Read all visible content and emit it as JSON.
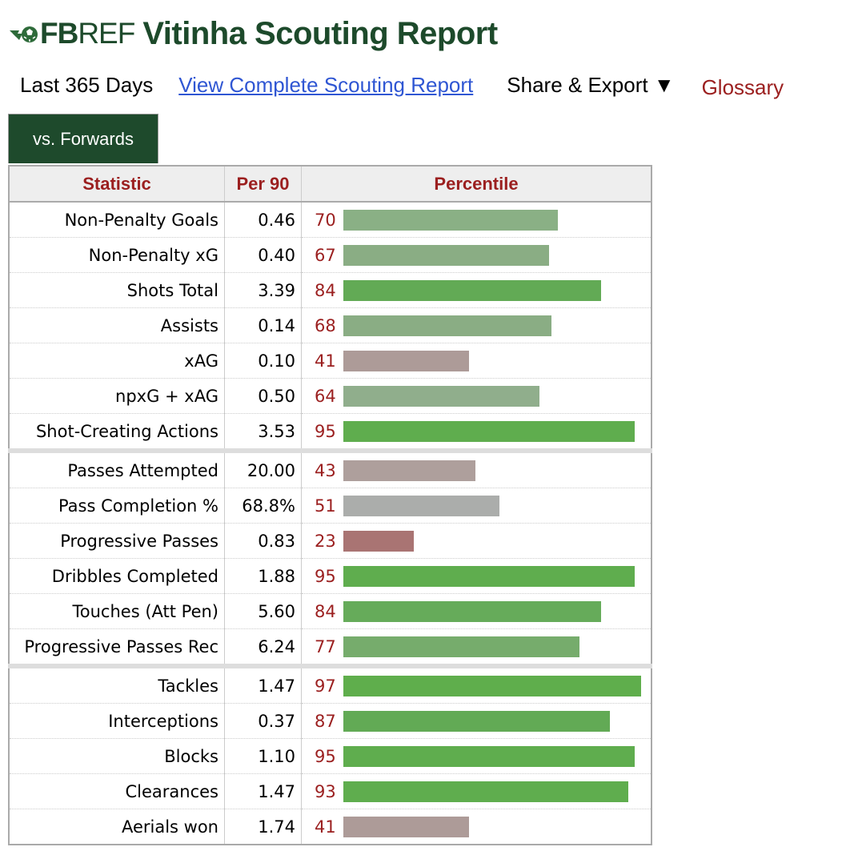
{
  "brand": {
    "logo_text_bold": "FB",
    "logo_text_thin": "REF"
  },
  "title": "Vitinha Scouting Report",
  "nav": {
    "period": "Last 365 Days",
    "full_report": "View Complete Scouting Report",
    "share": "Share & Export ▼",
    "glossary": "Glossary"
  },
  "tab": {
    "label": "vs. Forwards"
  },
  "table": {
    "headers": {
      "statistic": "Statistic",
      "per90": "Per 90",
      "percentile": "Percentile"
    },
    "groups": [
      [
        {
          "stat": "Non-Penalty Goals",
          "per90": "0.46",
          "pct": 70,
          "color": "#8ab085"
        },
        {
          "stat": "Non-Penalty xG",
          "per90": "0.40",
          "pct": 67,
          "color": "#8aad84"
        },
        {
          "stat": "Shots Total",
          "per90": "3.39",
          "pct": 84,
          "color": "#62aa55"
        },
        {
          "stat": "Assists",
          "per90": "0.14",
          "pct": 68,
          "color": "#8aad84"
        },
        {
          "stat": "xAG",
          "per90": "0.10",
          "pct": 41,
          "color": "#ad9b98"
        },
        {
          "stat": "npxG + xAG",
          "per90": "0.50",
          "pct": 64,
          "color": "#90ae8c"
        },
        {
          "stat": "Shot-Creating Actions",
          "per90": "3.53",
          "pct": 95,
          "color": "#5fad4e"
        }
      ],
      [
        {
          "stat": "Passes Attempted",
          "per90": "20.00",
          "pct": 43,
          "color": "#ae9f9c"
        },
        {
          "stat": "Pass Completion %",
          "per90": "68.8%",
          "pct": 51,
          "color": "#abadab"
        },
        {
          "stat": "Progressive Passes",
          "per90": "0.83",
          "pct": 23,
          "color": "#a97473"
        },
        {
          "stat": "Dribbles Completed",
          "per90": "1.88",
          "pct": 95,
          "color": "#5fad4e"
        },
        {
          "stat": "Touches (Att Pen)",
          "per90": "5.60",
          "pct": 84,
          "color": "#66ab5a"
        },
        {
          "stat": "Progressive Passes Rec",
          "per90": "6.24",
          "pct": 77,
          "color": "#76ac6c"
        }
      ],
      [
        {
          "stat": "Tackles",
          "per90": "1.47",
          "pct": 97,
          "color": "#5fae4c"
        },
        {
          "stat": "Interceptions",
          "per90": "0.37",
          "pct": 87,
          "color": "#62aa55"
        },
        {
          "stat": "Blocks",
          "per90": "1.10",
          "pct": 95,
          "color": "#5fad4e"
        },
        {
          "stat": "Clearances",
          "per90": "1.47",
          "pct": 93,
          "color": "#5fad4e"
        },
        {
          "stat": "Aerials won",
          "per90": "1.74",
          "pct": 41,
          "color": "#ad9b98"
        }
      ]
    ]
  }
}
